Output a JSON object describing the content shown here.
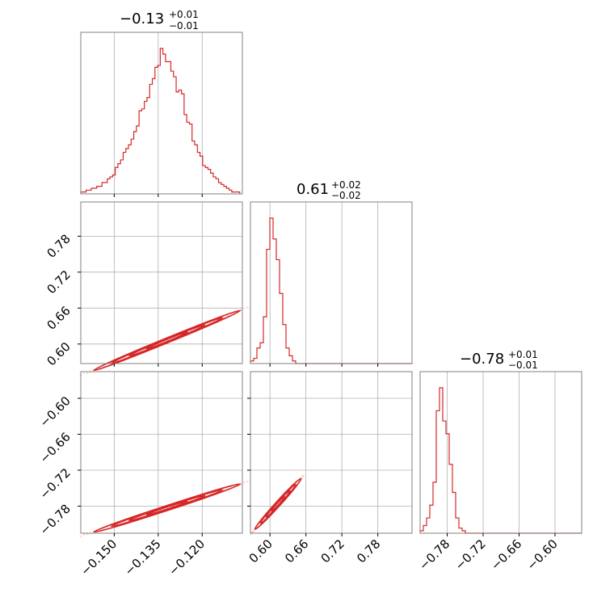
{
  "chart_data": {
    "type": "corner",
    "color": "#d62728",
    "params": [
      {
        "median": "−0.13",
        "plus": "+0.01",
        "minus": "−0.01",
        "range": [
          -0.1614,
          -0.1063
        ],
        "ticks": [
          -0.15,
          -0.135,
          -0.12
        ],
        "tick_labels": [
          "−0.150",
          "−0.135",
          "−0.120"
        ]
      },
      {
        "median": "0.61",
        "plus": "+0.02",
        "minus": "−0.02",
        "range": [
          0.5674,
          0.8371
        ],
        "ticks": [
          0.6,
          0.66,
          0.72,
          0.78
        ],
        "tick_labels": [
          "0.60",
          "0.66",
          "0.72",
          "0.78"
        ]
      },
      {
        "median": "−0.78",
        "plus": "+0.01",
        "minus": "−0.01",
        "range": [
          -0.8252,
          -0.5555
        ],
        "ticks": [
          -0.78,
          -0.72,
          -0.66,
          -0.6
        ],
        "tick_labels": [
          "−0.78",
          "−0.72",
          "−0.66",
          "−0.60"
        ]
      }
    ],
    "histograms": [
      {
        "param": 0,
        "edges": [
          -0.1614,
          -0.1072
        ],
        "counts": [
          1,
          1,
          2,
          2,
          3,
          3,
          4,
          4,
          6,
          6,
          8,
          9,
          10,
          14,
          16,
          18,
          22,
          24,
          26,
          29,
          33,
          36,
          44,
          45,
          49,
          51,
          58,
          61,
          67,
          68,
          77,
          74,
          70,
          70,
          65,
          62,
          54,
          55,
          53,
          42,
          38,
          37,
          28,
          26,
          22,
          20,
          15,
          14,
          13,
          11,
          9,
          8,
          6,
          5,
          4,
          3,
          2,
          1,
          1,
          1
        ]
      },
      {
        "param": 1,
        "edges": [
          0.5674,
          0.8371
        ],
        "counts": [
          1,
          2,
          6,
          8,
          18,
          44,
          56,
          48,
          40,
          27,
          15,
          6,
          3,
          1,
          0,
          0,
          0,
          0,
          0,
          0,
          0,
          0,
          0,
          0,
          0,
          0,
          0,
          0,
          0,
          0,
          0,
          0,
          0,
          0,
          0,
          0,
          0,
          0,
          0,
          0,
          0,
          0,
          0,
          0,
          0,
          0,
          0,
          0,
          0,
          0
        ]
      },
      {
        "param": 2,
        "edges": [
          -0.8252,
          -0.5555
        ],
        "counts": [
          1,
          3,
          6,
          11,
          20,
          48,
          57,
          44,
          39,
          27,
          16,
          6,
          2,
          1,
          0,
          0,
          0,
          0,
          0,
          0,
          0,
          0,
          0,
          0,
          0,
          0,
          0,
          0,
          0,
          0,
          0,
          0,
          0,
          0,
          0,
          0,
          0,
          0,
          0,
          0,
          0,
          0,
          0,
          0,
          0,
          0,
          0,
          0,
          0,
          0
        ]
      }
    ],
    "joints": [
      {
        "x_param": 0,
        "y_param": 1,
        "slope": 2.0,
        "median": [
          -0.13,
          0.61
        ],
        "extent": [
          -0.157,
          -0.107
        ],
        "scatter_start": -0.1614
      },
      {
        "x_param": 0,
        "y_param": 2,
        "slope": 1.6,
        "median": [
          -0.13,
          -0.78
        ],
        "extent": [
          -0.157,
          -0.107
        ],
        "scatter_start": -0.1614
      },
      {
        "x_param": 1,
        "y_param": 2,
        "slope": 1.1,
        "median": [
          0.61,
          -0.78
        ],
        "extent": [
          0.575,
          0.652
        ],
        "scatter_start": 0.5674
      }
    ],
    "grid": true
  }
}
